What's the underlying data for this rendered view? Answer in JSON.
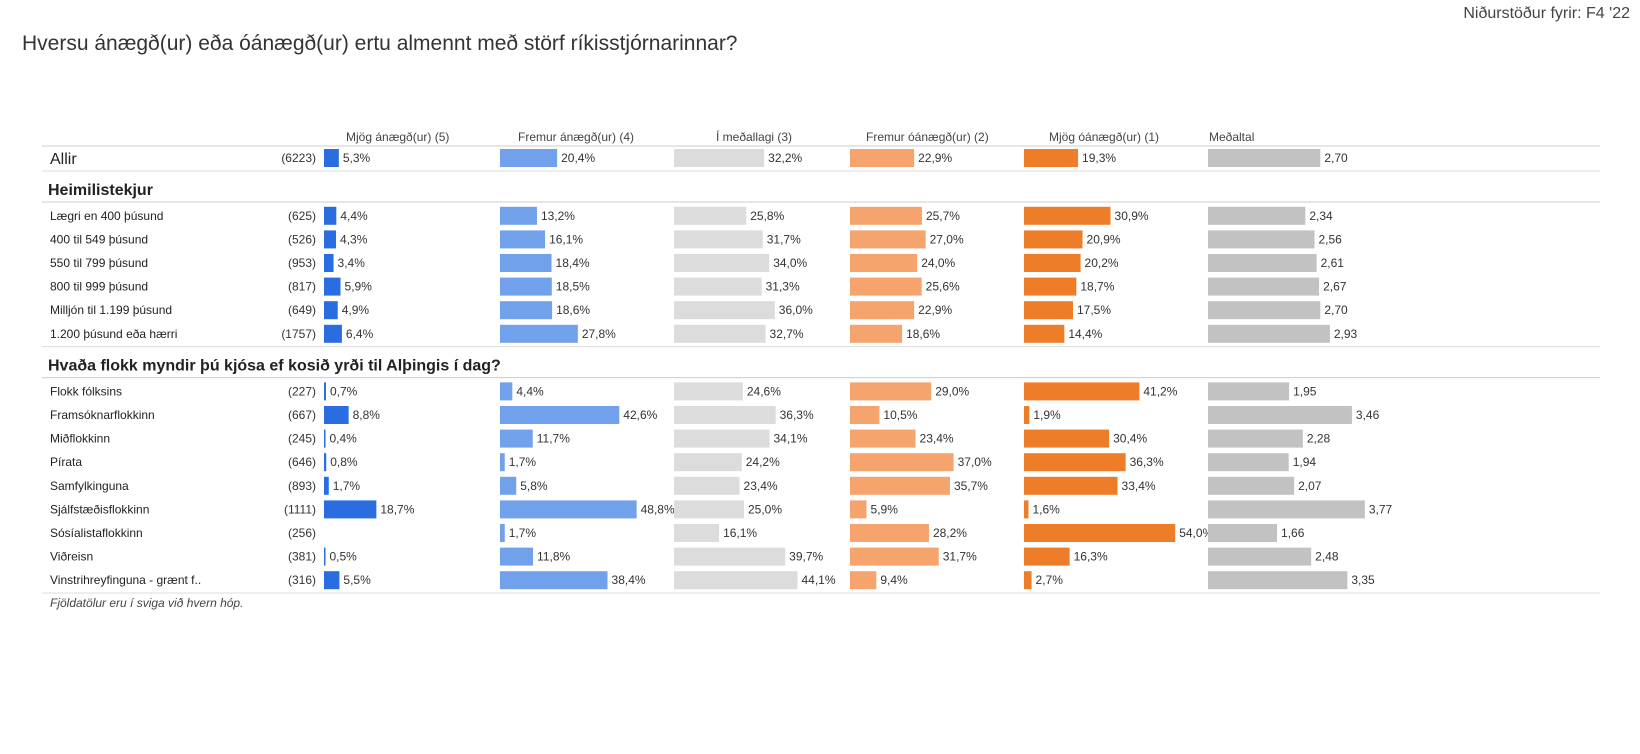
{
  "header": {
    "results_for": "Niðurstöður fyrir: F4 '22",
    "title": "Hversu ánægð(ur) eða óánægð(ur) ertu almennt með störf ríkisstjórnarinnar?"
  },
  "footnote": "Fjöldatölur eru í sviga við hvern hóp.",
  "colors": {
    "c5": "#2a6de0",
    "c4": "#72a1ec",
    "c3": "#dcdcdc",
    "c2": "#f4a46c",
    "c1": "#ee7d2a",
    "mean": "#c2c2c2"
  },
  "chart_data": {
    "type": "bar",
    "title": "Hversu ánægð(ur) eða óánægð(ur) ertu almennt með störf ríkisstjórnarinnar?",
    "columns": [
      "Mjög ánægð(ur) (5)",
      "Fremur ánægð(ur) (4)",
      "Í meðallagi (3)",
      "Fremur óánægð(ur) (2)",
      "Mjög óánægð(ur) (1)",
      "Meðaltal"
    ],
    "unit": "%",
    "mean_range": [
      1,
      5
    ],
    "groups": [
      {
        "heading": "",
        "rows": [
          {
            "label": "Allir",
            "n": "(6223)",
            "values": [
              5.3,
              20.4,
              32.2,
              22.9,
              19.3
            ],
            "mean": 2.7
          }
        ]
      },
      {
        "heading": "Heimilistekjur",
        "rows": [
          {
            "label": "Lægri en 400 þúsund",
            "n": "(625)",
            "values": [
              4.4,
              13.2,
              25.8,
              25.7,
              30.9
            ],
            "mean": 2.34
          },
          {
            "label": "400 til 549 þúsund",
            "n": "(526)",
            "values": [
              4.3,
              16.1,
              31.7,
              27.0,
              20.9
            ],
            "mean": 2.56
          },
          {
            "label": "550 til 799 þúsund",
            "n": "(953)",
            "values": [
              3.4,
              18.4,
              34.0,
              24.0,
              20.2
            ],
            "mean": 2.61
          },
          {
            "label": "800 til 999 þúsund",
            "n": "(817)",
            "values": [
              5.9,
              18.5,
              31.3,
              25.6,
              18.7
            ],
            "mean": 2.67
          },
          {
            "label": "Milljón til 1.199 þúsund",
            "n": "(649)",
            "values": [
              4.9,
              18.6,
              36.0,
              22.9,
              17.5
            ],
            "mean": 2.7
          },
          {
            "label": "1.200 þúsund eða hærri",
            "n": "(1757)",
            "values": [
              6.4,
              27.8,
              32.7,
              18.6,
              14.4
            ],
            "mean": 2.93
          }
        ]
      },
      {
        "heading": "Hvaða flokk myndir þú kjósa ef kosið yrði til Alþingis í dag?",
        "rows": [
          {
            "label": "Flokk fólksins",
            "n": "(227)",
            "values": [
              0.7,
              4.4,
              24.6,
              29.0,
              41.2
            ],
            "mean": 1.95
          },
          {
            "label": "Framsóknarflokkinn",
            "n": "(667)",
            "values": [
              8.8,
              42.6,
              36.3,
              10.5,
              1.9
            ],
            "mean": 3.46
          },
          {
            "label": "Miðflokkinn",
            "n": "(245)",
            "values": [
              0.4,
              11.7,
              34.1,
              23.4,
              30.4
            ],
            "mean": 2.28
          },
          {
            "label": "Pírata",
            "n": "(646)",
            "values": [
              0.8,
              1.7,
              24.2,
              37.0,
              36.3
            ],
            "mean": 1.94
          },
          {
            "label": "Samfylkinguna",
            "n": "(893)",
            "values": [
              1.7,
              5.8,
              23.4,
              35.7,
              33.4
            ],
            "mean": 2.07
          },
          {
            "label": "Sjálfstæðisflokkinn",
            "n": "(1111)",
            "values": [
              18.7,
              48.8,
              25.0,
              5.9,
              1.6
            ],
            "mean": 3.77
          },
          {
            "label": "Sósíalistaflokkinn",
            "n": "(256)",
            "values": [
              null,
              1.7,
              16.1,
              28.2,
              54.0
            ],
            "mean": 1.66
          },
          {
            "label": "Viðreisn",
            "n": "(381)",
            "values": [
              0.5,
              11.8,
              39.7,
              31.7,
              16.3
            ],
            "mean": 2.48
          },
          {
            "label": "Vinstrihreyfinguna - grænt f..",
            "n": "(316)",
            "values": [
              5.5,
              38.4,
              44.1,
              9.4,
              2.7
            ],
            "mean": 3.35
          }
        ]
      }
    ]
  }
}
